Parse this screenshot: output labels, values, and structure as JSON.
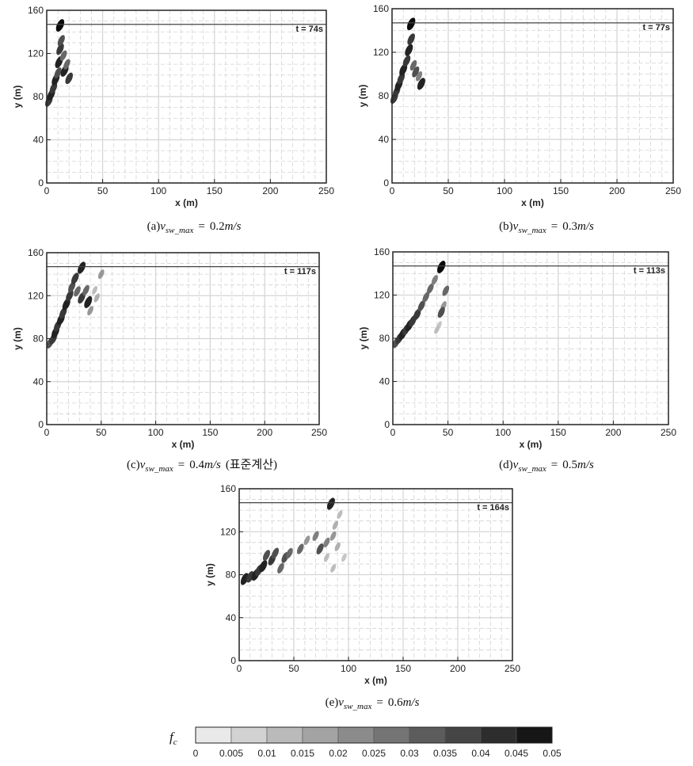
{
  "chart_data": [
    {
      "type": "heatmap",
      "panel": "a",
      "time_label": "t = 74s",
      "xlabel": "x (m)",
      "ylabel": "y (m)",
      "xlim": [
        0,
        250
      ],
      "ylim": [
        0,
        160
      ],
      "xticks": [
        "0",
        "50",
        "100",
        "150",
        "200",
        "250"
      ],
      "yticks": [
        "0",
        "40",
        "80",
        "120",
        "160"
      ],
      "boundary_y": 147,
      "caption": {
        "prefix": "(a)",
        "symbol": "v",
        "sub": "sw_max",
        "eq": "=",
        "value": "0.2",
        "unit": "m/s",
        "note": ""
      },
      "blobs": [
        {
          "x": 2,
          "y": 76,
          "v": 0.04
        },
        {
          "x": 4,
          "y": 82,
          "v": 0.045
        },
        {
          "x": 6,
          "y": 88,
          "v": 0.04
        },
        {
          "x": 8,
          "y": 96,
          "v": 0.045
        },
        {
          "x": 10,
          "y": 102,
          "v": 0.035
        },
        {
          "x": 11,
          "y": 112,
          "v": 0.045
        },
        {
          "x": 12,
          "y": 124,
          "v": 0.04
        },
        {
          "x": 13,
          "y": 132,
          "v": 0.035
        },
        {
          "x": 15,
          "y": 118,
          "v": 0.03
        },
        {
          "x": 16,
          "y": 104,
          "v": 0.045
        },
        {
          "x": 18,
          "y": 110,
          "v": 0.03
        },
        {
          "x": 20,
          "y": 97,
          "v": 0.04
        },
        {
          "x": 12,
          "y": 146,
          "v": 0.05
        }
      ]
    },
    {
      "type": "heatmap",
      "panel": "b",
      "time_label": "t = 77s",
      "xlabel": "x (m)",
      "ylabel": "y (m)",
      "xlim": [
        0,
        250
      ],
      "ylim": [
        0,
        160
      ],
      "xticks": [
        "0",
        "50",
        "100",
        "150",
        "200",
        "250"
      ],
      "yticks": [
        "0",
        "40",
        "80",
        "120",
        "160"
      ],
      "boundary_y": 147,
      "caption": {
        "prefix": "(b)",
        "symbol": "v",
        "sub": "sw_max",
        "eq": "=",
        "value": "0.3",
        "unit": "m/s",
        "note": ""
      },
      "blobs": [
        {
          "x": 2,
          "y": 78,
          "v": 0.04
        },
        {
          "x": 4,
          "y": 84,
          "v": 0.04
        },
        {
          "x": 6,
          "y": 90,
          "v": 0.045
        },
        {
          "x": 8,
          "y": 96,
          "v": 0.04
        },
        {
          "x": 10,
          "y": 104,
          "v": 0.045
        },
        {
          "x": 13,
          "y": 112,
          "v": 0.04
        },
        {
          "x": 15,
          "y": 122,
          "v": 0.045
        },
        {
          "x": 17,
          "y": 132,
          "v": 0.04
        },
        {
          "x": 19,
          "y": 108,
          "v": 0.03
        },
        {
          "x": 21,
          "y": 102,
          "v": 0.035
        },
        {
          "x": 24,
          "y": 98,
          "v": 0.025
        },
        {
          "x": 26,
          "y": 91,
          "v": 0.045
        },
        {
          "x": 17,
          "y": 146,
          "v": 0.05
        }
      ]
    },
    {
      "type": "heatmap",
      "panel": "c",
      "time_label": "t = 117s",
      "xlabel": "x (m)",
      "ylabel": "y (m)",
      "xlim": [
        0,
        250
      ],
      "ylim": [
        0,
        160
      ],
      "xticks": [
        "0",
        "50",
        "100",
        "150",
        "200",
        "250"
      ],
      "yticks": [
        "0",
        "40",
        "80",
        "120",
        "160"
      ],
      "boundary_y": 147,
      "caption": {
        "prefix": "(c)",
        "symbol": "v",
        "sub": "sw_max",
        "eq": "=",
        "value": "0.4",
        "unit": "m/s",
        "note": "(표준계산)"
      },
      "blobs": [
        {
          "x": 3,
          "y": 76,
          "v": 0.035
        },
        {
          "x": 6,
          "y": 80,
          "v": 0.04
        },
        {
          "x": 8,
          "y": 86,
          "v": 0.045
        },
        {
          "x": 10,
          "y": 92,
          "v": 0.04
        },
        {
          "x": 13,
          "y": 98,
          "v": 0.045
        },
        {
          "x": 15,
          "y": 104,
          "v": 0.04
        },
        {
          "x": 18,
          "y": 112,
          "v": 0.045
        },
        {
          "x": 21,
          "y": 120,
          "v": 0.04
        },
        {
          "x": 23,
          "y": 128,
          "v": 0.035
        },
        {
          "x": 26,
          "y": 136,
          "v": 0.04
        },
        {
          "x": 28,
          "y": 124,
          "v": 0.03
        },
        {
          "x": 32,
          "y": 118,
          "v": 0.04
        },
        {
          "x": 36,
          "y": 125,
          "v": 0.03
        },
        {
          "x": 38,
          "y": 114,
          "v": 0.045
        },
        {
          "x": 40,
          "y": 106,
          "v": 0.02
        },
        {
          "x": 46,
          "y": 118,
          "v": 0.015
        },
        {
          "x": 44,
          "y": 125,
          "v": 0.012
        },
        {
          "x": 50,
          "y": 140,
          "v": 0.02
        },
        {
          "x": 32,
          "y": 146,
          "v": 0.045
        }
      ]
    },
    {
      "type": "heatmap",
      "panel": "d",
      "time_label": "t = 113s",
      "xlabel": "x (m)",
      "ylabel": "y (m)",
      "xlim": [
        0,
        250
      ],
      "ylim": [
        0,
        160
      ],
      "xticks": [
        "0",
        "50",
        "100",
        "150",
        "200",
        "250"
      ],
      "yticks": [
        "0",
        "40",
        "80",
        "120",
        "160"
      ],
      "boundary_y": 147,
      "caption": {
        "prefix": "(d)",
        "symbol": "v",
        "sub": "sw_max",
        "eq": "=",
        "value": "0.5",
        "unit": "m/s",
        "note": ""
      },
      "blobs": [
        {
          "x": 3,
          "y": 76,
          "v": 0.035
        },
        {
          "x": 6,
          "y": 80,
          "v": 0.04
        },
        {
          "x": 9,
          "y": 84,
          "v": 0.045
        },
        {
          "x": 12,
          "y": 88,
          "v": 0.04
        },
        {
          "x": 15,
          "y": 92,
          "v": 0.045
        },
        {
          "x": 18,
          "y": 96,
          "v": 0.04
        },
        {
          "x": 22,
          "y": 102,
          "v": 0.04
        },
        {
          "x": 26,
          "y": 110,
          "v": 0.035
        },
        {
          "x": 30,
          "y": 118,
          "v": 0.03
        },
        {
          "x": 34,
          "y": 126,
          "v": 0.03
        },
        {
          "x": 38,
          "y": 134,
          "v": 0.025
        },
        {
          "x": 44,
          "y": 146,
          "v": 0.05
        },
        {
          "x": 48,
          "y": 124,
          "v": 0.03
        },
        {
          "x": 46,
          "y": 110,
          "v": 0.02
        },
        {
          "x": 44,
          "y": 104,
          "v": 0.035
        },
        {
          "x": 42,
          "y": 92,
          "v": 0.01
        },
        {
          "x": 40,
          "y": 88,
          "v": 0.012
        }
      ]
    },
    {
      "type": "heatmap",
      "panel": "e",
      "time_label": "t = 164s",
      "xlabel": "x (m)",
      "ylabel": "y (m)",
      "xlim": [
        0,
        250
      ],
      "ylim": [
        0,
        160
      ],
      "xticks": [
        "0",
        "50",
        "100",
        "150",
        "200",
        "250"
      ],
      "yticks": [
        "0",
        "40",
        "80",
        "120",
        "160"
      ],
      "boundary_y": 147,
      "caption": {
        "prefix": "(e)",
        "symbol": "v",
        "sub": "sw_max",
        "eq": "=",
        "value": "0.6",
        "unit": "m/s",
        "note": ""
      },
      "blobs": [
        {
          "x": 5,
          "y": 76,
          "v": 0.045
        },
        {
          "x": 10,
          "y": 78,
          "v": 0.04
        },
        {
          "x": 15,
          "y": 80,
          "v": 0.045
        },
        {
          "x": 18,
          "y": 84,
          "v": 0.04
        },
        {
          "x": 22,
          "y": 88,
          "v": 0.045
        },
        {
          "x": 25,
          "y": 98,
          "v": 0.035
        },
        {
          "x": 30,
          "y": 94,
          "v": 0.04
        },
        {
          "x": 33,
          "y": 100,
          "v": 0.035
        },
        {
          "x": 38,
          "y": 86,
          "v": 0.03
        },
        {
          "x": 42,
          "y": 96,
          "v": 0.035
        },
        {
          "x": 46,
          "y": 100,
          "v": 0.03
        },
        {
          "x": 56,
          "y": 104,
          "v": 0.03
        },
        {
          "x": 62,
          "y": 112,
          "v": 0.02
        },
        {
          "x": 70,
          "y": 116,
          "v": 0.025
        },
        {
          "x": 74,
          "y": 104,
          "v": 0.035
        },
        {
          "x": 80,
          "y": 110,
          "v": 0.025
        },
        {
          "x": 86,
          "y": 116,
          "v": 0.02
        },
        {
          "x": 90,
          "y": 106,
          "v": 0.015
        },
        {
          "x": 88,
          "y": 126,
          "v": 0.015
        },
        {
          "x": 92,
          "y": 136,
          "v": 0.012
        },
        {
          "x": 80,
          "y": 96,
          "v": 0.012
        },
        {
          "x": 86,
          "y": 86,
          "v": 0.012
        },
        {
          "x": 96,
          "y": 96,
          "v": 0.01
        },
        {
          "x": 84,
          "y": 146,
          "v": 0.045
        }
      ]
    }
  ],
  "colorbar": {
    "symbol": "f",
    "sub": "c",
    "ticks": [
      "0",
      "0.005",
      "0.01",
      "0.015",
      "0.02",
      "0.025",
      "0.03",
      "0.035",
      "0.04",
      "0.045",
      "0.05"
    ]
  }
}
